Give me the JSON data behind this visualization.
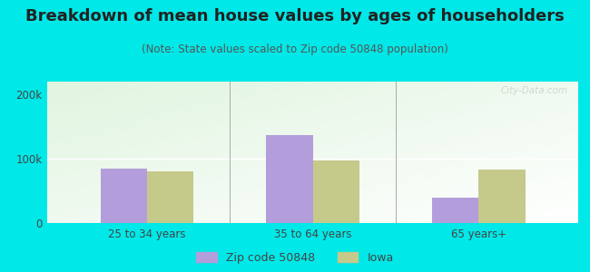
{
  "title": "Breakdown of mean house values by ages of householders",
  "subtitle": "(Note: State values scaled to Zip code 50848 population)",
  "categories": [
    "25 to 34 years",
    "35 to 64 years",
    "65 years+"
  ],
  "zip_values": [
    85000,
    137000,
    40000
  ],
  "iowa_values": [
    80000,
    97000,
    83000
  ],
  "zip_color": "#b39ddb",
  "iowa_color": "#c5c98a",
  "background_outer": "#00e8e8",
  "ylim": [
    0,
    220000
  ],
  "yticks": [
    0,
    100000,
    200000
  ],
  "ytick_labels": [
    "0",
    "100k",
    "200k"
  ],
  "legend_zip_label": "Zip code 50848",
  "legend_iowa_label": "Iowa",
  "bar_width": 0.28,
  "title_fontsize": 13,
  "subtitle_fontsize": 8.5,
  "tick_fontsize": 8.5,
  "legend_fontsize": 9,
  "watermark": "City-Data.com"
}
